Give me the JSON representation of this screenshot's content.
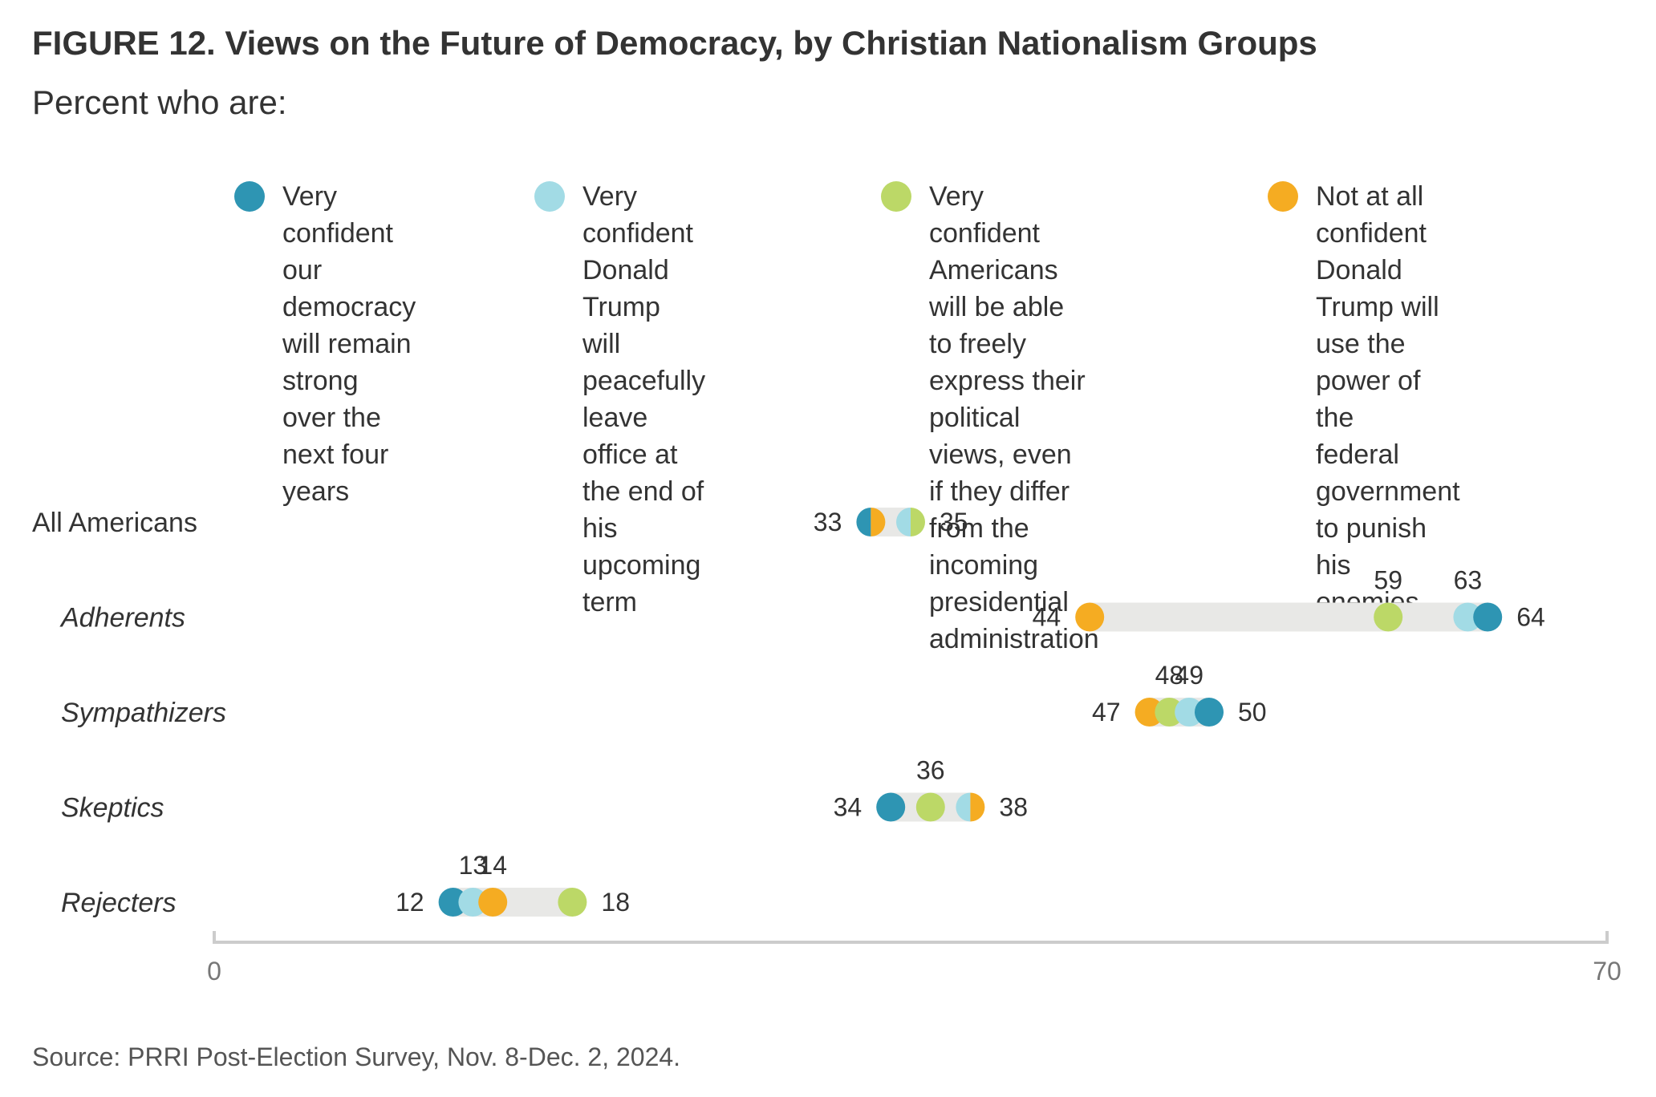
{
  "title": "FIGURE 12.  Views on the Future of Democracy, by Christian Nationalism Groups",
  "subtitle": "Percent who are:",
  "source": "Source: PRRI Post-Election Survey, Nov. 8-Dec. 2, 2024.",
  "chart_data": {
    "type": "scatter",
    "subtype": "dot-plot",
    "title": "FIGURE 12.  Views on the Future of Democracy, by Christian Nationalism Groups",
    "subtitle": "Percent who are:",
    "xlabel": "",
    "ylabel": "",
    "xlim": [
      0,
      70
    ],
    "x_ticks": [
      "0",
      "70"
    ],
    "grid": false,
    "legend_position": "top",
    "categories": [
      "All Americans",
      "Adherents",
      "Sympathizers",
      "Skeptics",
      "Rejecters"
    ],
    "category_styles": [
      "normal",
      "italic",
      "italic",
      "italic",
      "italic"
    ],
    "series": [
      {
        "name": "Very confident our democracy will remain strong over the next four years",
        "legend_text": "Very confident\nour democracy\nwill remain\nstrong over the\nnext four years",
        "color": "#2E95B3",
        "values": [
          33,
          64,
          50,
          34,
          12
        ]
      },
      {
        "name": "Very confident Donald Trump will peacefully leave office at the end of his upcoming term",
        "legend_text": "Very confident\nDonald Trump will\npeacefully leave\noffice at the end of\nhis upcoming term",
        "color": "#A2DBE5",
        "values": [
          35,
          63,
          49,
          38,
          13
        ]
      },
      {
        "name": "Very confident Americans will be able to freely express their political views, even if they differ from the incoming presidential administration",
        "legend_text": "Very confident\nAmericans will be able\nto freely express their\npolitical views, even\nif they differ from the\nincoming presidential\nadministration",
        "color": "#BCD867",
        "values": [
          35,
          59,
          48,
          36,
          18
        ]
      },
      {
        "name": "Not at all confident Donald Trump will use the power of the federal government to punish his enemies",
        "legend_text": "Not at all confident\nDonald Trump will\nuse the power of the\nfederal government\nto punish his enemies",
        "color": "#F5AC22",
        "values": [
          33,
          44,
          47,
          38,
          14
        ]
      }
    ],
    "data_labels": [
      {
        "row": 0,
        "text": "33",
        "anchor": 33,
        "position": "left"
      },
      {
        "row": 0,
        "text": "35",
        "anchor": 35,
        "position": "right"
      },
      {
        "row": 1,
        "text": "44",
        "anchor": 44,
        "position": "left"
      },
      {
        "row": 1,
        "text": "59",
        "anchor": 59,
        "position": "above"
      },
      {
        "row": 1,
        "text": "63",
        "anchor": 63,
        "position": "above"
      },
      {
        "row": 1,
        "text": "64",
        "anchor": 64,
        "position": "right"
      },
      {
        "row": 2,
        "text": "47",
        "anchor": 47,
        "position": "left"
      },
      {
        "row": 2,
        "text": "48",
        "anchor": 48,
        "position": "above"
      },
      {
        "row": 2,
        "text": "49",
        "anchor": 49,
        "position": "above"
      },
      {
        "row": 2,
        "text": "50",
        "anchor": 50,
        "position": "right"
      },
      {
        "row": 3,
        "text": "34",
        "anchor": 34,
        "position": "left"
      },
      {
        "row": 3,
        "text": "36",
        "anchor": 36,
        "position": "above"
      },
      {
        "row": 3,
        "text": "38",
        "anchor": 38,
        "position": "right"
      },
      {
        "row": 4,
        "text": "12",
        "anchor": 12,
        "position": "left"
      },
      {
        "row": 4,
        "text": "13",
        "anchor": 13,
        "position": "above"
      },
      {
        "row": 4,
        "text": "14",
        "anchor": 14,
        "position": "above"
      },
      {
        "row": 4,
        "text": "18",
        "anchor": 18,
        "position": "right"
      }
    ],
    "colors": {
      "range_bar": "#E8E8E6",
      "axis": "#CCCCCC",
      "text": "#333333",
      "axis_text": "#777777"
    }
  }
}
